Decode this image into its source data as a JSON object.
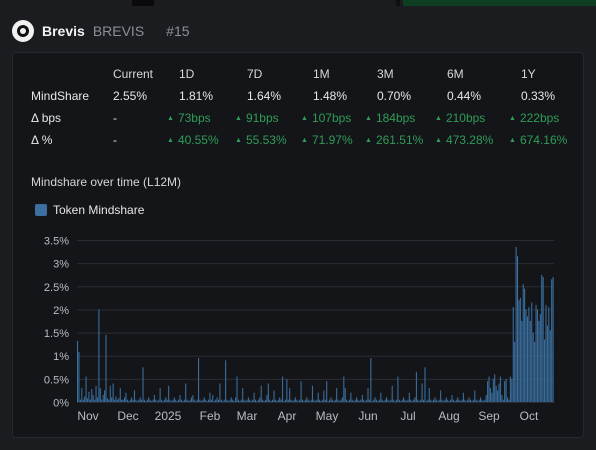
{
  "header": {
    "name": "Brevis",
    "ticker": "BREVIS",
    "rank": "#15"
  },
  "table": {
    "columns": [
      "Current",
      "1D",
      "7D",
      "1M",
      "3M",
      "6M",
      "1Y"
    ],
    "rows": [
      {
        "label": "MindShare",
        "values": [
          "2.55%",
          "1.81%",
          "1.64%",
          "1.48%",
          "0.70%",
          "0.44%",
          "0.33%"
        ]
      },
      {
        "label": "Δ bps",
        "values": [
          "-",
          "73bps",
          "91bps",
          "107bps",
          "184bps",
          "210bps",
          "222bps"
        ]
      },
      {
        "label": "Δ %",
        "values": [
          "-",
          "40.55%",
          "55.53%",
          "71.97%",
          "261.51%",
          "473.28%",
          "674.16%"
        ]
      }
    ],
    "up_arrow": "▲"
  },
  "chart_title": "Mindshare over time (L12M)",
  "colors": {
    "series": "#3a6f9f",
    "positive": "#2f9c57",
    "grid": "#2a2c33"
  },
  "chart_data": {
    "type": "bar",
    "title": "Mindshare over time (L12M)",
    "series": [
      {
        "name": "Token Mindshare"
      }
    ],
    "ylim": [
      0,
      3.5
    ],
    "yticks": [
      "0%",
      "0.5%",
      "1%",
      "1.5%",
      "2%",
      "2.5%",
      "3%",
      "3.5%"
    ],
    "xticks": [
      "Nov",
      "Dec",
      "2025",
      "Feb",
      "Mar",
      "Apr",
      "May",
      "Jun",
      "Jul",
      "Aug",
      "Sep",
      "Oct"
    ],
    "values": [
      1.32,
      1.08,
      0.05,
      0.3,
      0.05,
      0.12,
      0.55,
      0.08,
      0.22,
      0.05,
      0.28,
      0.15,
      0.05,
      0.35,
      0.1,
      2.0,
      0.3,
      0.05,
      0.15,
      0.25,
      1.45,
      0.08,
      0.05,
      0.35,
      0.1,
      0.4,
      0.05,
      0.12,
      0.05,
      0.08,
      0.3,
      0.05,
      0.05,
      0.1,
      0.2,
      0.05,
      0.02,
      0.05,
      0.1,
      0.05,
      0.25,
      0.05,
      0.02,
      0.05,
      0.1,
      0.05,
      0.75,
      0.05,
      0.02,
      0.05,
      0.1,
      0.05,
      0.02,
      0.05,
      0.15,
      0.05,
      0.02,
      0.05,
      0.3,
      0.05,
      0.02,
      0.05,
      0.1,
      0.05,
      0.35,
      0.05,
      0.02,
      0.05,
      0.1,
      0.05,
      0.02,
      0.05,
      0.15,
      0.05,
      0.02,
      0.05,
      0.4,
      0.05,
      0.02,
      0.05,
      0.1,
      0.15,
      0.05,
      0.02,
      0.05,
      0.95,
      0.05,
      0.02,
      0.05,
      0.1,
      0.05,
      0.02,
      0.05,
      0.2,
      0.05,
      0.15,
      0.02,
      0.05,
      0.1,
      0.05,
      0.4,
      0.05,
      0.02,
      0.05,
      0.9,
      0.05,
      0.02,
      0.05,
      0.1,
      0.05,
      0.02,
      0.1,
      0.55,
      0.05,
      0.02,
      0.05,
      0.3,
      0.05,
      0.02,
      0.05,
      0.1,
      0.05,
      0.02,
      0.05,
      0.2,
      0.05,
      0.02,
      0.05,
      0.1,
      0.35,
      0.05,
      0.02,
      0.05,
      0.15,
      0.4,
      0.05,
      0.02,
      0.05,
      0.25,
      0.05,
      0.02,
      0.05,
      0.1,
      0.05,
      0.55,
      0.02,
      0.05,
      0.5,
      0.05,
      0.3,
      0.05,
      0.02,
      0.05,
      0.1,
      0.05,
      0.02,
      0.05,
      0.45,
      0.05,
      0.02,
      0.05,
      0.1,
      0.05,
      0.02,
      0.05,
      0.35,
      0.05,
      0.02,
      0.05,
      0.2,
      0.05,
      0.02,
      0.05,
      0.25,
      0.05,
      0.45,
      0.02,
      0.05,
      0.1,
      0.05,
      0.02,
      0.05,
      0.3,
      0.05,
      0.02,
      0.05,
      0.1,
      0.55,
      0.3,
      0.05,
      0.02,
      0.05,
      0.2,
      0.05,
      0.02,
      0.05,
      0.1,
      0.05,
      0.02,
      0.05,
      0.15,
      0.05,
      0.02,
      0.05,
      0.3,
      0.05,
      0.95,
      0.02,
      0.05,
      0.1,
      0.05,
      0.02,
      0.05,
      0.2,
      0.05,
      0.02,
      0.05,
      0.1,
      0.05,
      0.02,
      0.05,
      0.35,
      0.05,
      0.02,
      0.05,
      0.55,
      0.05,
      0.02,
      0.05,
      0.1,
      0.05,
      0.02,
      0.05,
      0.2,
      0.05,
      0.02,
      0.05,
      0.1,
      0.65,
      0.05,
      0.02,
      0.05,
      0.4,
      0.05,
      0.75,
      0.02,
      0.05,
      0.3,
      0.05,
      0.02,
      0.05,
      0.1,
      0.05,
      0.02,
      0.05,
      0.25,
      0.05,
      0.02,
      0.05,
      0.1,
      0.05,
      0.02,
      0.05,
      0.15,
      0.05,
      0.02,
      0.05,
      0.1,
      0.05,
      0.02,
      0.05,
      0.2,
      0.05,
      0.02,
      0.05,
      0.1,
      0.05,
      0.02,
      0.05,
      0.25,
      0.05,
      0.02,
      0.05,
      0.1,
      0.05,
      0.02,
      0.05,
      0.15,
      0.45,
      0.55,
      0.3,
      0.2,
      0.5,
      0.6,
      0.35,
      0.25,
      0.4,
      0.55,
      0.15,
      0.05,
      0.45,
      0.5,
      0.1,
      0.05,
      0.55,
      0.5,
      2.05,
      1.3,
      3.35,
      3.15,
      2.2,
      2.25,
      1.75,
      2.55,
      2.45,
      2.0,
      1.85,
      2.05,
      1.75,
      2.15,
      1.5,
      1.3,
      2.1,
      2.0,
      1.75,
      1.9,
      2.75,
      2.7,
      1.35,
      2.1,
      1.65,
      2.05,
      1.55,
      2.65,
      2.7
    ]
  }
}
